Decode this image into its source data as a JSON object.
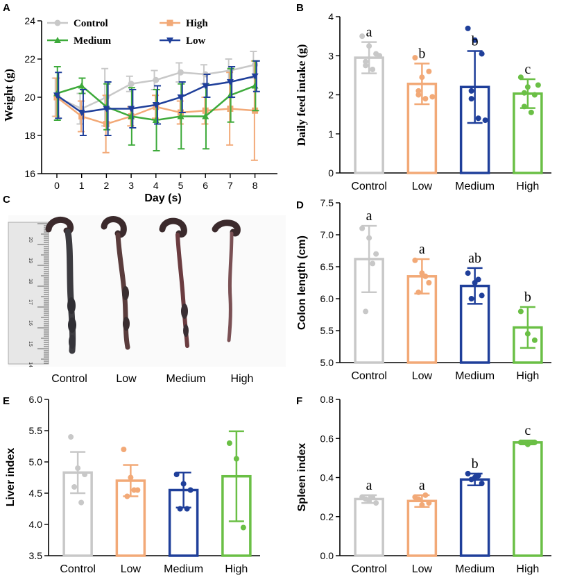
{
  "colors": {
    "control": "#c8c8c8",
    "low_bar": "#f2a977",
    "medium": "#1f3f9a",
    "high_bar": "#6abf45",
    "high_line": "#f2a977",
    "low_line": "#1f3f9a",
    "medium_line": "#3daa3a"
  },
  "chart_data": [
    {
      "panel": "A",
      "type": "line",
      "xlabel": "Day (s)",
      "ylabel": "Weight (g)",
      "ylim": [
        16,
        24
      ],
      "yticks": [
        16,
        18,
        20,
        22,
        24
      ],
      "x": [
        0,
        1,
        2,
        3,
        4,
        5,
        6,
        7,
        8
      ],
      "legend_position": "top-left",
      "series": [
        {
          "name": "Control",
          "color_key": "control",
          "marker": "circle",
          "values": [
            20.0,
            19.4,
            20.0,
            20.7,
            20.9,
            21.3,
            21.2,
            21.4,
            21.7
          ],
          "errors": [
            1.0,
            0.8,
            1.5,
            0.4,
            0.5,
            0.5,
            0.5,
            0.6,
            0.7
          ]
        },
        {
          "name": "High",
          "color_key": "high_line",
          "marker": "square",
          "values": [
            20.0,
            19.0,
            18.6,
            19.0,
            19.5,
            19.2,
            19.3,
            19.4,
            19.3
          ],
          "errors": [
            1.0,
            0.8,
            1.5,
            0.5,
            0.6,
            0.6,
            0.7,
            1.9,
            2.6
          ]
        },
        {
          "name": "Medium",
          "color_key": "medium_line",
          "marker": "triangle-up",
          "values": [
            20.2,
            20.6,
            19.5,
            19.0,
            18.8,
            19.0,
            19.0,
            20.1,
            20.6
          ],
          "errors": [
            1.4,
            0.4,
            1.2,
            1.5,
            1.6,
            1.7,
            1.7,
            1.4,
            1.3
          ]
        },
        {
          "name": "Low",
          "color_key": "low_line",
          "marker": "triangle-down",
          "values": [
            20.1,
            19.2,
            19.4,
            19.4,
            19.6,
            20.0,
            20.6,
            20.8,
            21.1
          ],
          "errors": [
            1.2,
            1.2,
            1.4,
            1.0,
            1.0,
            0.8,
            0.6,
            0.8,
            0.8
          ]
        }
      ]
    },
    {
      "panel": "B",
      "type": "bar",
      "ylabel": "Daily feed intake (g)",
      "ylabel_font": "serif",
      "ylim": [
        0,
        4
      ],
      "yticks": [
        0,
        1,
        2,
        3,
        4
      ],
      "categories": [
        "Control",
        "Low",
        "Medium",
        "High"
      ],
      "color_keys": [
        "control",
        "low_bar",
        "medium",
        "high_bar"
      ],
      "values": [
        2.95,
        2.28,
        2.2,
        2.03
      ],
      "errors": [
        0.4,
        0.52,
        0.92,
        0.37
      ],
      "points": [
        [
          3.5,
          3.25,
          3.05,
          2.75,
          2.65,
          3.0,
          2.85
        ],
        [
          2.95,
          2.45,
          2.6,
          2.1,
          1.9,
          1.95,
          2.0
        ],
        [
          3.7,
          3.4,
          3.05,
          2.1,
          1.4,
          1.35,
          1.9
        ],
        [
          2.45,
          2.2,
          2.0,
          1.7,
          1.55,
          2.25,
          2.05
        ]
      ],
      "significance": [
        "a",
        "b",
        "b",
        "c"
      ]
    },
    {
      "panel": "D",
      "type": "bar",
      "ylabel": "Colon length (cm)",
      "ylabel_font": "sans",
      "ylim": [
        5.0,
        7.5
      ],
      "yticks": [
        5.0,
        5.5,
        6.0,
        6.5,
        7.0,
        7.5
      ],
      "categories": [
        "Control",
        "Low",
        "Medium",
        "High"
      ],
      "color_keys": [
        "control",
        "low_bar",
        "medium",
        "high_bar"
      ],
      "values": [
        6.62,
        6.35,
        6.2,
        5.55
      ],
      "errors": [
        0.52,
        0.27,
        0.28,
        0.32
      ],
      "points": [
        [
          7.1,
          6.95,
          6.7,
          5.8,
          6.55
        ],
        [
          6.6,
          6.4,
          6.25,
          6.1,
          6.35
        ],
        [
          6.4,
          6.25,
          6.05,
          6.0,
          6.3
        ],
        [
          5.8,
          5.45,
          5.35
        ]
      ],
      "significance": [
        "a",
        "a",
        "ab",
        "b"
      ]
    },
    {
      "panel": "E",
      "type": "bar",
      "ylabel": "Liver index",
      "ylabel_font": "sans",
      "ylim": [
        3.5,
        6.0
      ],
      "yticks": [
        3.5,
        4.0,
        4.5,
        5.0,
        5.5,
        6.0
      ],
      "categories": [
        "Control",
        "Low",
        "Medium",
        "High"
      ],
      "color_keys": [
        "control",
        "low_bar",
        "medium",
        "high_bar"
      ],
      "values": [
        4.83,
        4.7,
        4.55,
        4.77
      ],
      "errors": [
        0.33,
        0.25,
        0.28,
        0.72
      ],
      "points": [
        [
          5.4,
          4.9,
          4.8,
          4.6,
          4.35
        ],
        [
          5.2,
          4.75,
          4.55,
          4.45,
          4.55
        ],
        [
          4.8,
          4.65,
          4.55,
          4.25,
          4.25
        ],
        [
          5.3,
          5.05,
          3.95
        ]
      ],
      "significance": []
    },
    {
      "panel": "F",
      "type": "bar",
      "ylabel": "Spleen index",
      "ylabel_font": "sans",
      "ylim": [
        0.0,
        0.8
      ],
      "yticks": [
        0.0,
        0.2,
        0.4,
        0.6,
        0.8
      ],
      "categories": [
        "Control",
        "Low",
        "Medium",
        "High"
      ],
      "color_keys": [
        "control",
        "low_bar",
        "medium",
        "high_bar"
      ],
      "values": [
        0.29,
        0.28,
        0.39,
        0.58
      ],
      "errors": [
        0.02,
        0.03,
        0.03,
        0.01
      ],
      "points": [
        [
          0.3,
          0.28,
          0.27,
          0.29,
          0.3
        ],
        [
          0.3,
          0.26,
          0.27,
          0.29,
          0.31
        ],
        [
          0.42,
          0.4,
          0.37,
          0.39,
          0.41
        ],
        [
          0.58,
          0.57,
          0.58
        ]
      ],
      "significance": [
        "a",
        "a",
        "b",
        "c"
      ]
    }
  ],
  "panel_labels": [
    "A",
    "B",
    "C",
    "D",
    "E",
    "F"
  ],
  "photo_panel": {
    "categories": [
      "Control",
      "Low",
      "Medium",
      "High"
    ],
    "ruler_numbers": [
      "20",
      "19",
      "18",
      "17",
      "16",
      "15",
      "14"
    ]
  }
}
